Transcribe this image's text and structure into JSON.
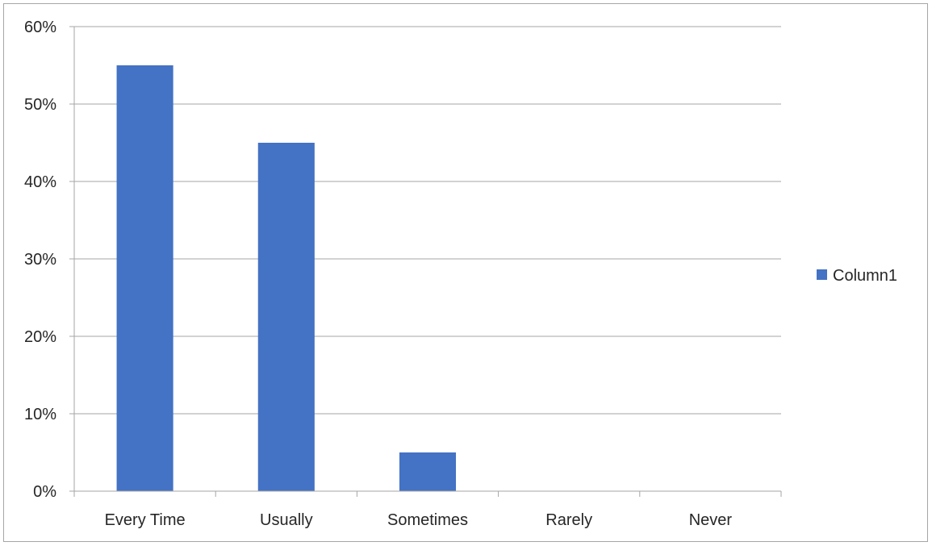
{
  "chart_data": {
    "type": "bar",
    "categories": [
      "Every Time",
      "Usually",
      "Sometimes",
      "Rarely",
      "Never"
    ],
    "series": [
      {
        "name": "Column1",
        "values": [
          55,
          45,
          5,
          0,
          0
        ]
      }
    ],
    "y_tick_labels": [
      "0%",
      "10%",
      "20%",
      "30%",
      "40%",
      "50%",
      "60%"
    ],
    "ylim": [
      0,
      60
    ],
    "y_unit": "%",
    "grid": true,
    "legend_position": "right",
    "colors": {
      "bar": "#4472c4",
      "grid": "#a6a6a6",
      "axis": "#a6a6a6",
      "text": "#262626"
    }
  }
}
